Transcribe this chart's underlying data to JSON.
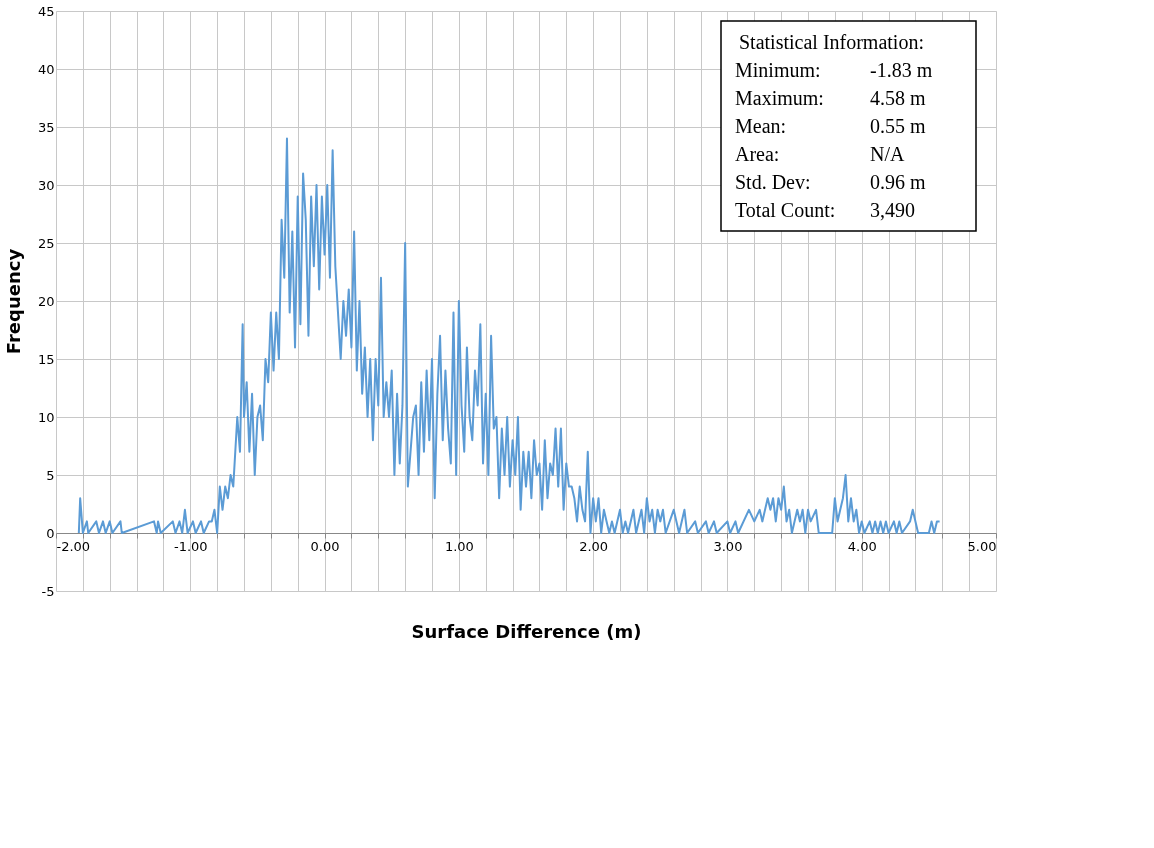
{
  "chart_data": {
    "type": "line",
    "xlabel": "Surface Difference (m)",
    "ylabel": "Frequency",
    "annotations": [
      "Statistical Information:",
      "Minimum:",
      "-1.83 m",
      "Maximum:",
      "4.58 m",
      "Mean:",
      "0.55 m",
      "Area:",
      "N/A",
      "Std. Dev:",
      "0.96 m",
      "Total Count:",
      "3,490"
    ],
    "xlim": [
      -2,
      5
    ],
    "ylim": [
      -5,
      45
    ],
    "xticks": [
      "-2.00",
      {
        "value": -1.8,
        "label": null
      },
      {
        "value": -1.6,
        "label": null
      },
      {
        "value": -1.4,
        "label": null
      },
      {
        "value": -1.2,
        "label": null
      },
      {
        "value": -1,
        "label": "-1.00"
      },
      {
        "value": -0.8,
        "label": null
      },
      {
        "value": -0.6,
        "label": null
      },
      {
        "value": -0.4,
        "label": null
      },
      {
        "value": -0.2,
        "label": null
      },
      {
        "value": 0,
        "label": "0.00"
      },
      {
        "value": 0.2,
        "label": null
      },
      {
        "value": 0.4,
        "label": null
      },
      {
        "value": 0.6,
        "label": null
      },
      {
        "value": 0.8,
        "label": null
      },
      {
        "value": 1,
        "label": "1.00"
      },
      {
        "value": 1.2,
        "label": null
      },
      {
        "value": 1.4,
        "label": null
      },
      {
        "value": 1.6,
        "label": null
      },
      {
        "value": 1.8,
        "label": null
      },
      {
        "value": 2,
        "label": "2.00"
      },
      {
        "value": 2.2,
        "label": null
      },
      {
        "value": 2.4,
        "label": null
      },
      {
        "value": 2.6,
        "label": null
      },
      {
        "value": 2.8,
        "label": null
      },
      {
        "value": 3,
        "label": "3.00"
      },
      {
        "value": 3.2,
        "label": null
      },
      {
        "value": 3.4,
        "label": null
      },
      {
        "value": 3.6,
        "label": null
      },
      {
        "value": 3.8,
        "label": null
      },
      {
        "value": 4,
        "label": "4.00"
      },
      {
        "value": 4.2,
        "label": null
      },
      {
        "value": 4.4,
        "label": null
      },
      {
        "value": 4.6,
        "label": null
      },
      {
        "value": 4.8,
        "label": null
      },
      {
        "value": 5,
        "label": "5.00"
      }
    ],
    "yticks": [
      -5,
      0,
      5,
      10,
      15,
      20,
      25,
      30,
      35,
      40,
      45
    ],
    "grid": true,
    "series": [
      {
        "color": "#5b9bd5",
        "x": [
          -1.83,
          -1.82,
          -1.8,
          -1.77,
          -1.76,
          -1.7,
          -1.68,
          -1.65,
          -1.63,
          -1.6,
          -1.58,
          -1.52,
          -1.51,
          -1.27,
          -1.25,
          -1.24,
          -1.22,
          -1.13,
          -1.11,
          -1.08,
          -1.06,
          -1.04,
          -1.02,
          -0.98,
          -0.96,
          -0.92,
          -0.9,
          -0.86,
          -0.84,
          -0.82,
          -0.8,
          -0.78,
          -0.76,
          -0.74,
          -0.72,
          -0.7,
          -0.68,
          -0.65,
          -0.63,
          -0.61,
          -0.6,
          -0.58,
          -0.56,
          -0.54,
          -0.52,
          -0.5,
          -0.48,
          -0.46,
          -0.44,
          -0.42,
          -0.4,
          -0.38,
          -0.36,
          -0.34,
          -0.32,
          -0.3,
          -0.28,
          -0.26,
          -0.24,
          -0.22,
          -0.2,
          -0.18,
          -0.16,
          -0.14,
          -0.12,
          -0.1,
          -0.08,
          -0.06,
          -0.04,
          -0.02,
          0.0,
          0.02,
          0.04,
          0.06,
          0.08,
          0.1,
          0.12,
          0.14,
          0.16,
          0.18,
          0.2,
          0.22,
          0.24,
          0.26,
          0.28,
          0.3,
          0.32,
          0.34,
          0.36,
          0.38,
          0.4,
          0.42,
          0.44,
          0.46,
          0.48,
          0.5,
          0.52,
          0.54,
          0.56,
          0.58,
          0.6,
          0.62,
          0.64,
          0.66,
          0.68,
          0.7,
          0.72,
          0.74,
          0.76,
          0.78,
          0.8,
          0.82,
          0.84,
          0.86,
          0.88,
          0.9,
          0.92,
          0.94,
          0.96,
          0.98,
          1.0,
          1.02,
          1.04,
          1.06,
          1.08,
          1.1,
          1.12,
          1.14,
          1.16,
          1.18,
          1.2,
          1.22,
          1.24,
          1.26,
          1.28,
          1.3,
          1.32,
          1.34,
          1.36,
          1.38,
          1.4,
          1.42,
          1.44,
          1.46,
          1.48,
          1.5,
          1.52,
          1.54,
          1.56,
          1.58,
          1.6,
          1.62,
          1.64,
          1.66,
          1.68,
          1.7,
          1.72,
          1.74,
          1.76,
          1.78,
          1.8,
          1.82,
          1.84,
          1.86,
          1.88,
          1.9,
          1.92,
          1.94,
          1.96,
          1.98,
          2.0,
          2.02,
          2.04,
          2.06,
          2.08,
          2.1,
          2.12,
          2.14,
          2.16,
          2.2,
          2.22,
          2.24,
          2.26,
          2.28,
          2.3,
          2.32,
          2.36,
          2.38,
          2.4,
          2.42,
          2.44,
          2.46,
          2.48,
          2.5,
          2.52,
          2.54,
          2.6,
          2.62,
          2.64,
          2.68,
          2.7,
          2.76,
          2.78,
          2.84,
          2.86,
          2.9,
          2.92,
          3.0,
          3.02,
          3.06,
          3.08,
          3.16,
          3.2,
          3.24,
          3.26,
          3.3,
          3.32,
          3.34,
          3.36,
          3.38,
          3.4,
          3.42,
          3.44,
          3.46,
          3.48,
          3.52,
          3.54,
          3.56,
          3.58,
          3.6,
          3.62,
          3.66,
          3.68,
          3.78,
          3.8,
          3.82,
          3.84,
          3.86,
          3.88,
          3.9,
          3.92,
          3.94,
          3.96,
          3.98,
          4.0,
          4.02,
          4.06,
          4.08,
          4.1,
          4.12,
          4.14,
          4.16,
          4.18,
          4.2,
          4.24,
          4.26,
          4.28,
          4.3,
          4.36,
          4.38,
          4.4,
          4.42,
          4.5,
          4.52,
          4.54,
          4.56,
          4.58
        ],
        "values": [
          0,
          3,
          0,
          1,
          0,
          1,
          0,
          1,
          0,
          1,
          0,
          1,
          0,
          1,
          0,
          1,
          0,
          1,
          0,
          1,
          0,
          2,
          0,
          1,
          0,
          1,
          0,
          1,
          1,
          2,
          0,
          4,
          2,
          4,
          3,
          5,
          4,
          10,
          7,
          18,
          10,
          13,
          7,
          12,
          5,
          10,
          11,
          8,
          15,
          13,
          19,
          14,
          19,
          15,
          27,
          22,
          34,
          19,
          26,
          16,
          29,
          18,
          31,
          27,
          17,
          29,
          23,
          30,
          21,
          29,
          24,
          30,
          22,
          33,
          23,
          19,
          15,
          20,
          17,
          21,
          16,
          26,
          14,
          20,
          12,
          16,
          10,
          15,
          8,
          15,
          11,
          22,
          10,
          13,
          10,
          14,
          5,
          12,
          6,
          11,
          25,
          4,
          7,
          10,
          11,
          5,
          13,
          7,
          14,
          8,
          15,
          3,
          12,
          17,
          8,
          14,
          9,
          6,
          19,
          5,
          20,
          11,
          7,
          16,
          10,
          8,
          14,
          11,
          18,
          6,
          12,
          5,
          17,
          9,
          10,
          3,
          9,
          5,
          10,
          4,
          8,
          5,
          10,
          2,
          7,
          4,
          7,
          3,
          8,
          5,
          6,
          2,
          8,
          3,
          6,
          5,
          9,
          4,
          9,
          2,
          6,
          4,
          4,
          3,
          1,
          4,
          2,
          1,
          7,
          0,
          3,
          1,
          3,
          0,
          2,
          1,
          0,
          1,
          0,
          2,
          0,
          1,
          0,
          1,
          2,
          0,
          2,
          0,
          3,
          1,
          2,
          0,
          2,
          1,
          2,
          0,
          2,
          1,
          0,
          2,
          0,
          1,
          0,
          1,
          0,
          1,
          0,
          1,
          0,
          1,
          0,
          2,
          1,
          2,
          1,
          3,
          2,
          3,
          1,
          3,
          2,
          4,
          1,
          2,
          0,
          2,
          1,
          2,
          0,
          2,
          1,
          2,
          0,
          0,
          3,
          1,
          2,
          3,
          5,
          1,
          3,
          1,
          2,
          0,
          1,
          0,
          1,
          0,
          1,
          0,
          1,
          0,
          1,
          0,
          1,
          0,
          1,
          0,
          1,
          2,
          1,
          0,
          0,
          1,
          0,
          1,
          1
        ]
      }
    ]
  }
}
